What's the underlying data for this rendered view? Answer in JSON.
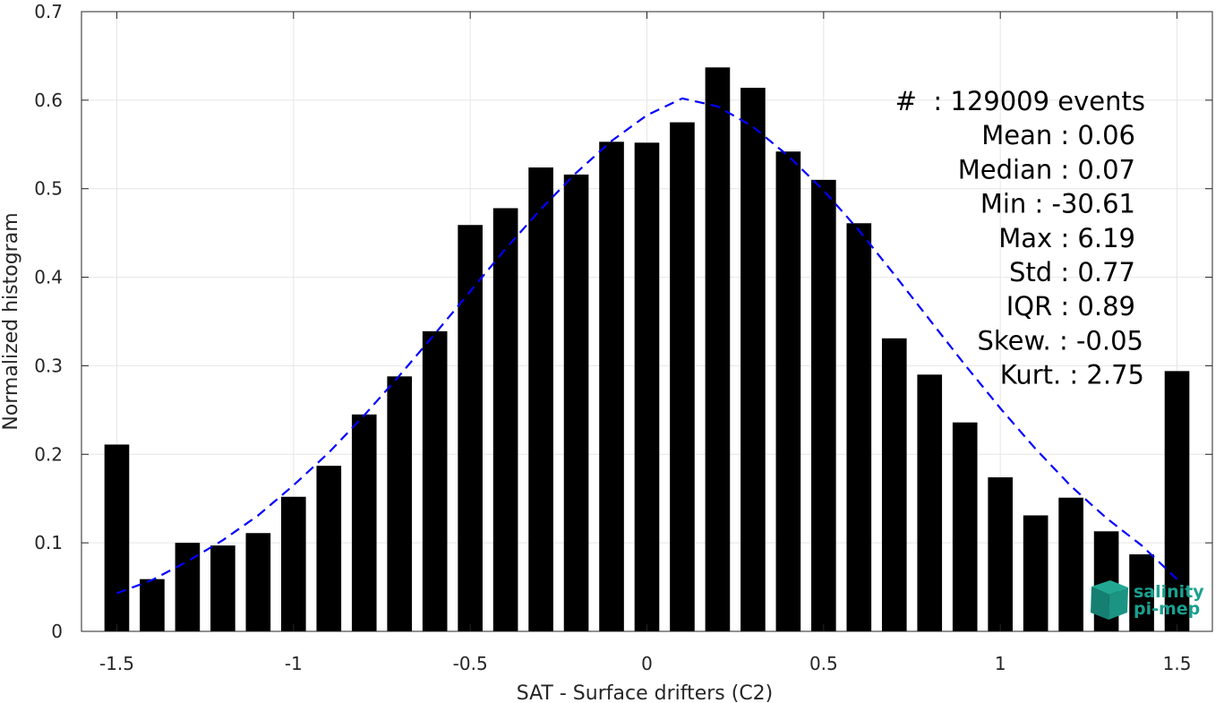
{
  "chart_data": {
    "type": "bar",
    "title": "",
    "xlabel": "SAT - Surface drifters (C2)",
    "ylabel": "Normalized histogram",
    "xlim": [
      -1.6,
      1.6
    ],
    "ylim": [
      0,
      0.7
    ],
    "grid": true,
    "x_ticks": [
      "-1.5",
      "-1",
      "-0.5",
      "0",
      "0.5",
      "1",
      "1.5"
    ],
    "x_tick_values": [
      -1.5,
      -1,
      -0.5,
      0,
      0.5,
      1,
      1.5
    ],
    "y_ticks": [
      "0",
      "0.1",
      "0.2",
      "0.3",
      "0.4",
      "0.5",
      "0.6",
      "0.7"
    ],
    "y_tick_values": [
      0,
      0.1,
      0.2,
      0.3,
      0.4,
      0.5,
      0.6,
      0.7
    ],
    "bar_color": "#000000",
    "bins": [
      -1.5,
      -1.4,
      -1.3,
      -1.2,
      -1.1,
      -1.0,
      -0.9,
      -0.8,
      -0.7,
      -0.6,
      -0.5,
      -0.4,
      -0.3,
      -0.2,
      -0.1,
      0.0,
      0.1,
      0.2,
      0.3,
      0.4,
      0.5,
      0.6,
      0.7,
      0.8,
      0.9,
      1.0,
      1.1,
      1.2,
      1.3,
      1.4,
      1.5
    ],
    "values": [
      0.211,
      0.059,
      0.1,
      0.097,
      0.111,
      0.152,
      0.187,
      0.245,
      0.288,
      0.339,
      0.459,
      0.478,
      0.524,
      0.516,
      0.553,
      0.552,
      0.575,
      0.637,
      0.614,
      0.542,
      0.51,
      0.461,
      0.331,
      0.29,
      0.236,
      0.174,
      0.131,
      0.151,
      0.113,
      0.087,
      0.294
    ],
    "fit": {
      "style": "dashed",
      "color": "#0000ff",
      "x": [
        -1.5,
        -1.4,
        -1.3,
        -1.2,
        -1.1,
        -1.0,
        -0.9,
        -0.8,
        -0.7,
        -0.6,
        -0.5,
        -0.4,
        -0.3,
        -0.2,
        -0.1,
        0.0,
        0.1,
        0.2,
        0.3,
        0.4,
        0.5,
        0.6,
        0.7,
        0.8,
        0.9,
        1.0,
        1.1,
        1.2,
        1.3,
        1.4,
        1.5
      ],
      "y": [
        0.043,
        0.058,
        0.079,
        0.103,
        0.131,
        0.165,
        0.202,
        0.244,
        0.289,
        0.336,
        0.384,
        0.432,
        0.477,
        0.518,
        0.554,
        0.583,
        0.602,
        0.593,
        0.57,
        0.537,
        0.498,
        0.453,
        0.403,
        0.352,
        0.301,
        0.252,
        0.206,
        0.164,
        0.128,
        0.097,
        0.059
      ]
    },
    "stats": [
      "#  : 129009 events",
      "Mean : 0.06",
      "Median : 0.07",
      "Min : -30.61",
      "Max : 6.19",
      "Std : 0.77",
      "IQR : 0.89",
      "Skew. : -0.05",
      "Kurt. : 2.75"
    ]
  },
  "logo": {
    "line1": "salinity",
    "line2": "pi-mep",
    "color": "#1aa08f"
  }
}
